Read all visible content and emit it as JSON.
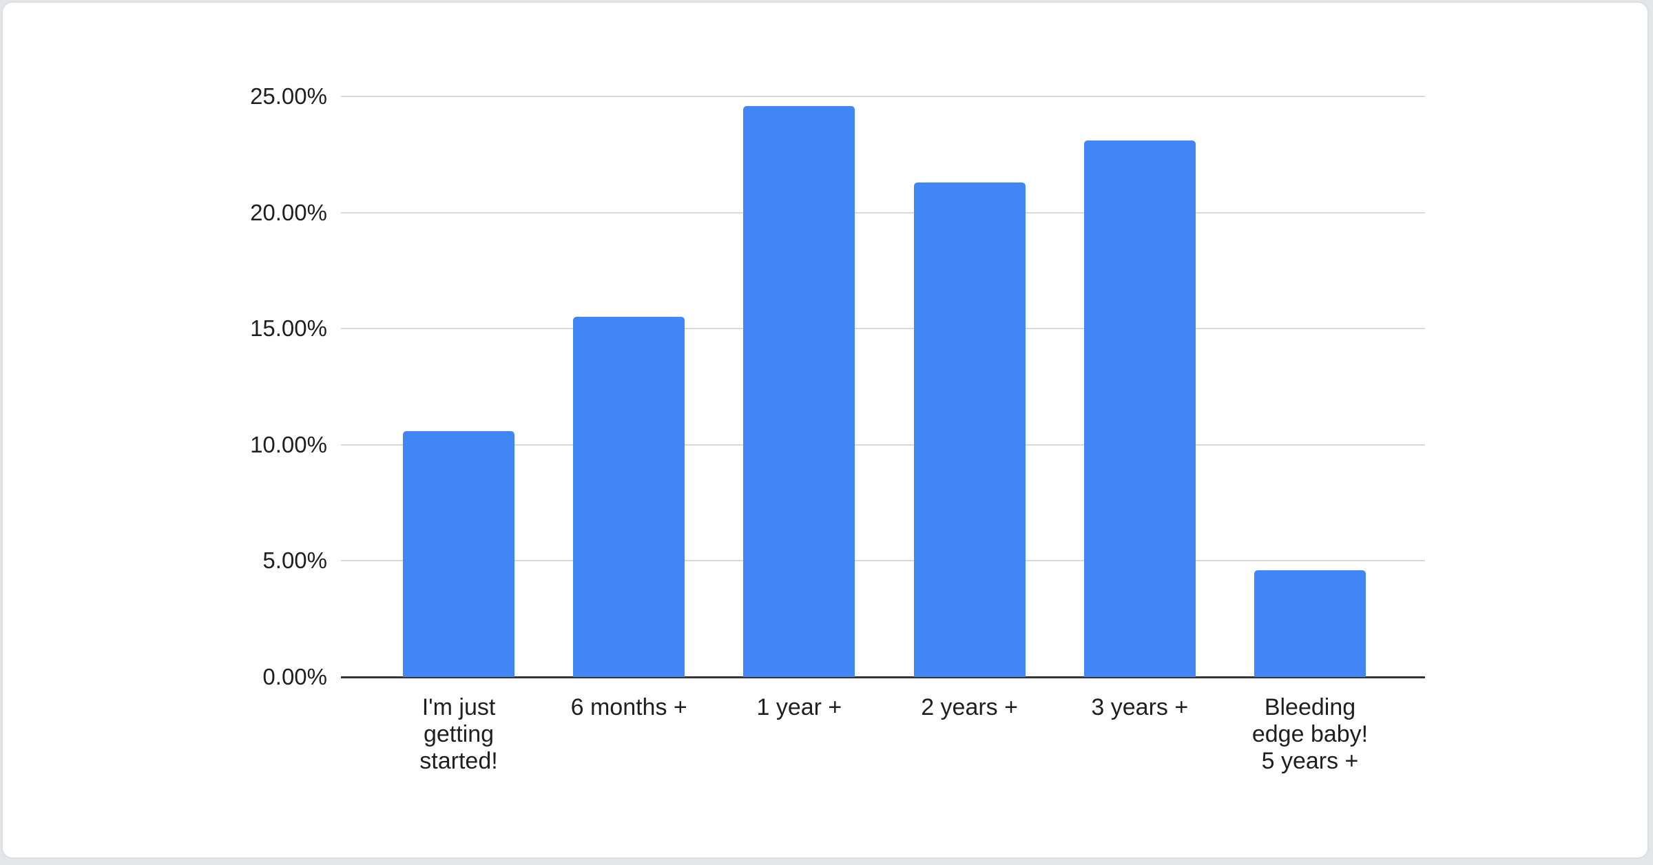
{
  "chart_data": {
    "type": "bar",
    "title": "",
    "categories": [
      "I'm just\ngetting\nstarted!",
      "6 months +",
      "1 year +",
      "2 years +",
      "3 years +",
      "Bleeding\nedge baby!\n5 years +"
    ],
    "values": [
      10.6,
      15.5,
      24.6,
      21.3,
      23.1,
      4.6
    ],
    "value_unit": "percent",
    "ytick_labels": [
      "0.00%",
      "5.00%",
      "10.00%",
      "15.00%",
      "20.00%",
      "25.00%"
    ],
    "ytick_values": [
      0,
      5,
      10,
      15,
      20,
      25
    ],
    "ylim": [
      0,
      25
    ],
    "xlabel": "",
    "ylabel": "",
    "grid": "on",
    "legend": "none",
    "colors": {
      "bar": "#4285f4",
      "gridline": "#d9d9d9",
      "axis_line": "#333333",
      "text": "#1f1f1f",
      "card_background": "#ffffff",
      "page_background": "#e3e6e9",
      "card_border": "#dcdfe2"
    }
  }
}
